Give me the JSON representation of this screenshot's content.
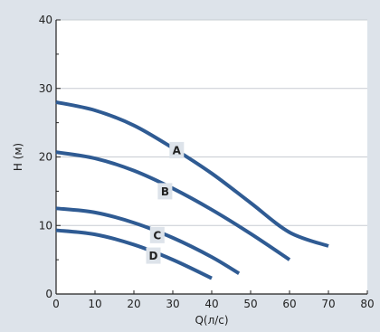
{
  "chart_data": {
    "type": "line",
    "title": "",
    "xlabel": "Q(л/с)",
    "ylabel": "H (м)",
    "xlim": [
      0,
      80
    ],
    "ylim": [
      0,
      40
    ],
    "xticks": [
      0,
      10,
      20,
      30,
      40,
      50,
      60,
      70,
      80
    ],
    "yticks": [
      0,
      10,
      20,
      30,
      40
    ],
    "grid": "horizontal",
    "colors": {
      "curve": "#2f5b93",
      "background": "#dde3ea",
      "plot": "#ffffff",
      "grid": "#c7ccd2",
      "label_box": "#dde3ea"
    },
    "series": [
      {
        "name": "A",
        "x": [
          0,
          10,
          20,
          30,
          40,
          50,
          60,
          70
        ],
        "y": [
          28,
          26.8,
          24.6,
          21.3,
          17.6,
          13.3,
          9.0,
          7.0
        ],
        "label_at": [
          31,
          21
        ]
      },
      {
        "name": "B",
        "x": [
          0,
          10,
          20,
          30,
          40,
          50,
          60
        ],
        "y": [
          20.7,
          19.8,
          18.0,
          15.4,
          12.3,
          8.8,
          5.0
        ],
        "label_at": [
          28,
          15
        ]
      },
      {
        "name": "C",
        "x": [
          0,
          10,
          20,
          30,
          40,
          47
        ],
        "y": [
          12.5,
          11.9,
          10.4,
          8.2,
          5.4,
          3.0
        ],
        "label_at": [
          26,
          8.6
        ]
      },
      {
        "name": "D",
        "x": [
          0,
          10,
          20,
          30,
          40
        ],
        "y": [
          9.3,
          8.7,
          7.2,
          5.0,
          2.3
        ],
        "label_at": [
          25,
          5.6
        ]
      }
    ]
  }
}
